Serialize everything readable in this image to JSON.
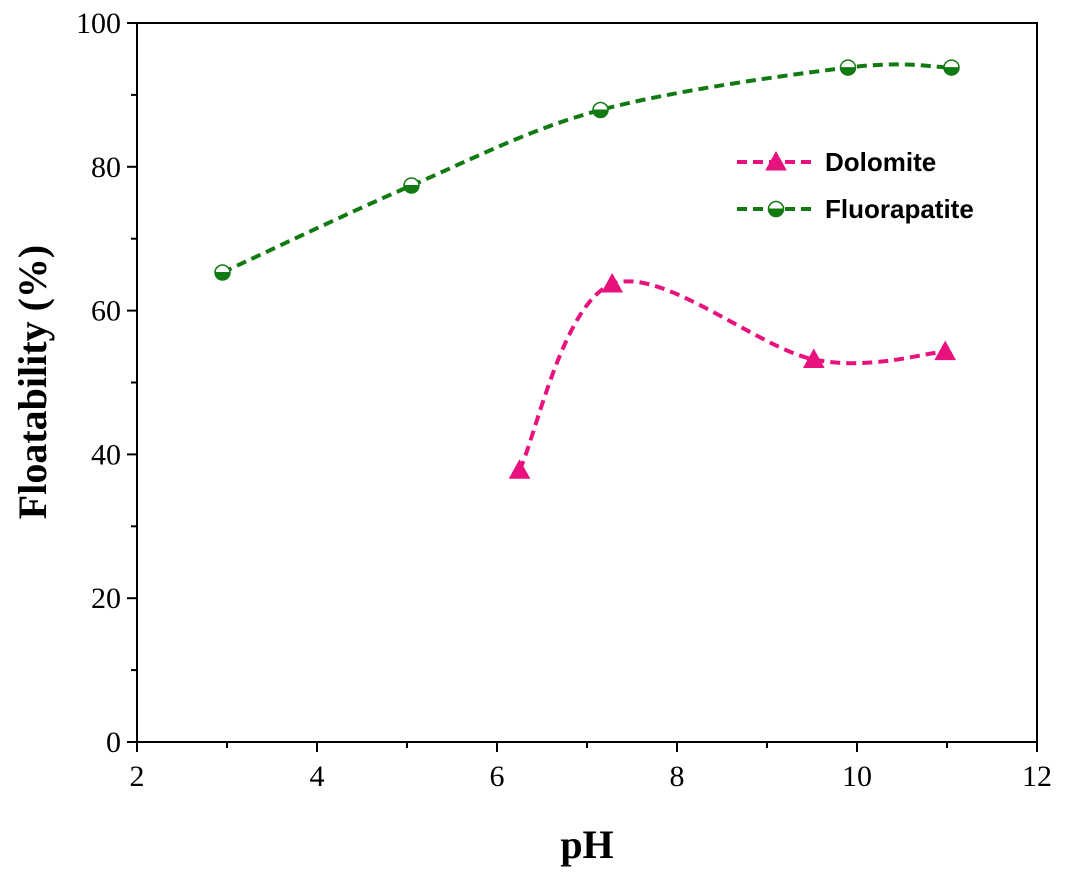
{
  "chart_data": {
    "type": "line",
    "title": "",
    "xlabel": "pH",
    "ylabel": "Floatability (%)",
    "xlim": [
      2,
      12
    ],
    "ylim": [
      0,
      100
    ],
    "x_major_ticks": [
      2,
      4,
      6,
      8,
      10,
      12
    ],
    "x_minor_ticks": [
      3,
      5,
      7,
      9,
      11
    ],
    "y_major_ticks": [
      0,
      20,
      40,
      60,
      80,
      100
    ],
    "y_minor_ticks": [
      10,
      30,
      50,
      70,
      90
    ],
    "grid": false,
    "legend_position": "upper-right",
    "series": [
      {
        "name": "Dolomite",
        "marker": "triangle",
        "line_style": "dashed-spline",
        "color": "#e8127f",
        "x": [
          6.25,
          7.28,
          9.52,
          10.98
        ],
        "y": [
          37.8,
          63.7,
          53.2,
          54.3
        ]
      },
      {
        "name": "Fluorapatite",
        "marker": "half-filled-circle",
        "line_style": "dashed-spline",
        "color": "#127a12",
        "x": [
          2.95,
          5.05,
          7.15,
          9.9,
          11.05
        ],
        "y": [
          65.3,
          77.4,
          87.9,
          93.8,
          93.8
        ]
      }
    ]
  }
}
